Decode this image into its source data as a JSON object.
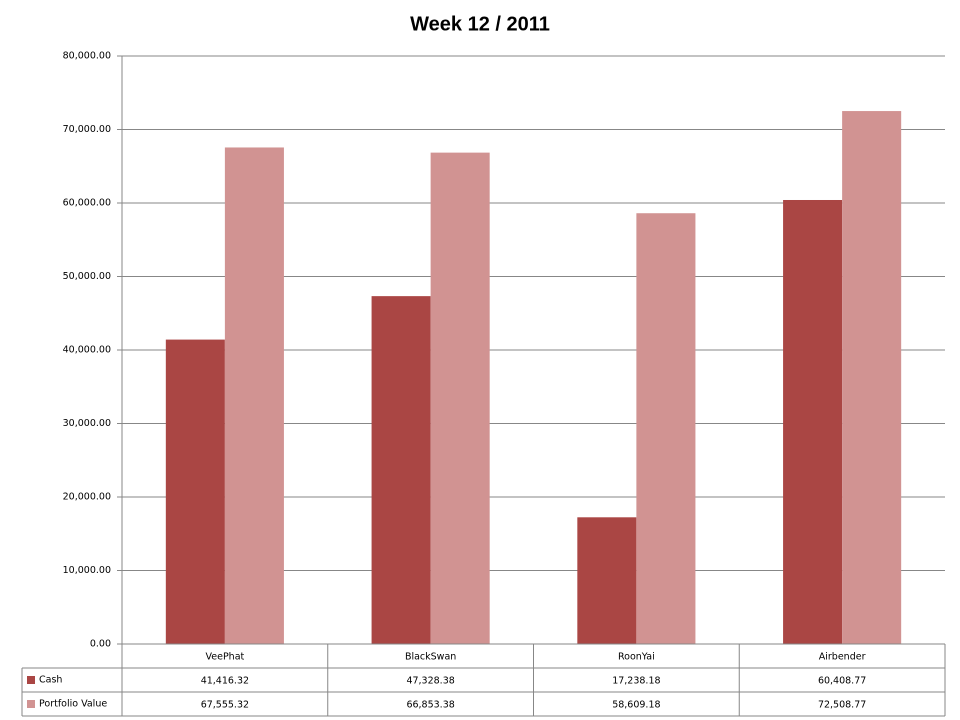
{
  "chart_data": {
    "type": "bar",
    "title": "Week 12 / 2011",
    "categories": [
      "VeePhat",
      "BlackSwan",
      "RoonYai",
      "Airbender"
    ],
    "series": [
      {
        "name": "Cash",
        "color": "#aa4644",
        "values": [
          41416.32,
          47328.38,
          17238.18,
          60408.77
        ],
        "value_labels": [
          "41,416.32",
          "47,328.38",
          "17,238.18",
          "60,408.77"
        ]
      },
      {
        "name": "Portfolio Value",
        "color": "#d19392",
        "values": [
          67555.32,
          66853.38,
          58609.18,
          72508.77
        ],
        "value_labels": [
          "67,555.32",
          "66,853.38",
          "58,609.18",
          "72,508.77"
        ]
      }
    ],
    "ylim": [
      0,
      80000
    ],
    "yticks": [
      {
        "value": 0,
        "label": "0.00"
      },
      {
        "value": 10000,
        "label": "10,000.00"
      },
      {
        "value": 20000,
        "label": "20,000.00"
      },
      {
        "value": 30000,
        "label": "30,000.00"
      },
      {
        "value": 40000,
        "label": "40,000.00"
      },
      {
        "value": 50000,
        "label": "50,000.00"
      },
      {
        "value": 60000,
        "label": "60,000.00"
      },
      {
        "value": 70000,
        "label": "70,000.00"
      },
      {
        "value": 80000,
        "label": "80,000.00"
      }
    ],
    "grid": true
  }
}
